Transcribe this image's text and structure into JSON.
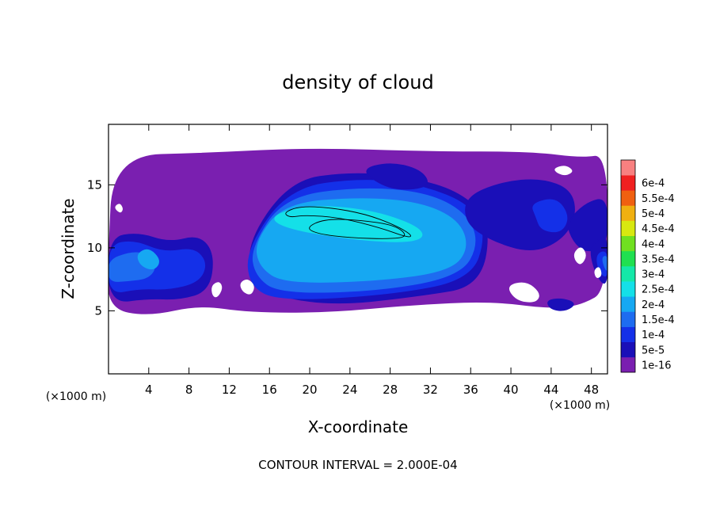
{
  "chart_data": {
    "type": "heatmap",
    "title": "density of cloud",
    "xlabel": "X-coordinate",
    "ylabel": "Z-coordinate",
    "x_unit": "(×1000 m)",
    "z_unit": "(×1000 m)",
    "xlim": [
      0,
      49.6
    ],
    "ylim": [
      0,
      19.8
    ],
    "x_ticks": [
      4,
      8,
      12,
      16,
      20,
      24,
      28,
      32,
      36,
      40,
      44,
      48
    ],
    "y_ticks": [
      5,
      10,
      15
    ],
    "footer": "CONTOUR INTERVAL = 2.000E-04",
    "colorbar": {
      "placement": "right",
      "levels": [
        "1e-16",
        "5e-5",
        "1e-4",
        "1.5e-4",
        "2e-4",
        "2.5e-4",
        "3e-4",
        "3.5e-4",
        "4e-4",
        "4.5e-4",
        "5e-4",
        "5.5e-4",
        "6e-4"
      ],
      "colors": [
        "#7a1fb0",
        "#1a0fb8",
        "#1430e8",
        "#1e6cf0",
        "#16a8f2",
        "#14e0e8",
        "#14e8a8",
        "#20e050",
        "#70e020",
        "#d8e810",
        "#f0b010",
        "#f06010",
        "#f02020",
        "#f88080"
      ]
    },
    "regions": [
      {
        "level": 0,
        "x": [
          0,
          0.5,
          10,
          20,
          32,
          42,
          47,
          49.6,
          49.6,
          47,
          44,
          38,
          30,
          22,
          14,
          9,
          4,
          0
        ],
        "z": [
          9,
          17.3,
          17.5,
          17.9,
          17.6,
          17.6,
          17.1,
          17.4,
          6.7,
          5.5,
          5.2,
          5.8,
          5.5,
          4.9,
          4.9,
          5.5,
          4.6,
          5.2
        ]
      },
      {
        "level": 1,
        "x": [
          13.5,
          18,
          24,
          30,
          35,
          38,
          37,
          31,
          22,
          15
        ],
        "z": [
          10,
          15.3,
          16,
          15.6,
          14.4,
          12,
          7,
          6.2,
          5.4,
          6.5
        ]
      },
      {
        "level": 2,
        "x": [
          13.8,
          18,
          25,
          31,
          36,
          37.5,
          36,
          28,
          17,
          14
        ],
        "z": [
          10,
          14.7,
          15.5,
          15,
          13.4,
          11,
          7.5,
          6.3,
          5.8,
          7
        ]
      },
      {
        "level": 3,
        "x": [
          14.2,
          17.5,
          25,
          31.5,
          35.5,
          36.8,
          35,
          27,
          17,
          14.6
        ],
        "z": [
          10,
          14,
          14.8,
          14.4,
          12.8,
          10.4,
          7.8,
          6.6,
          6.4,
          7.8
        ]
      },
      {
        "level": 4,
        "x": [
          14.6,
          17.5,
          25,
          31,
          34.8,
          35.8,
          34,
          27,
          17.5,
          15
        ],
        "z": [
          10.5,
          13.5,
          14,
          13.6,
          12.2,
          10,
          8.2,
          7.4,
          7.2,
          8.5
        ]
      },
      {
        "level": 5,
        "x": [
          16,
          20,
          26,
          30.5,
          31.5,
          29,
          23,
          17.5
        ],
        "z": [
          12.5,
          13.4,
          13,
          11.8,
          10.8,
          10.4,
          10.8,
          11.6
        ]
      },
      {
        "level": 1,
        "x": [
          0,
          3,
          6,
          9,
          10.5,
          10,
          7,
          4,
          0
        ],
        "z": [
          10.8,
          11.2,
          10.4,
          11,
          9.5,
          6.6,
          5.9,
          6,
          5.6
        ]
      },
      {
        "level": 2,
        "x": [
          0,
          2.5,
          5.5,
          8.5,
          9.8,
          9,
          6,
          3,
          0
        ],
        "z": [
          10.2,
          10.6,
          9.6,
          10,
          8.8,
          7.3,
          6.7,
          6.8,
          6.3
        ]
      },
      {
        "level": 3,
        "x": [
          0,
          2,
          3.5,
          4.8,
          4,
          2,
          0
        ],
        "z": [
          9,
          9.6,
          9.6,
          8.6,
          7.6,
          7.4,
          7.3
        ]
      },
      {
        "level": 4,
        "x": [
          2.8,
          4,
          5.2,
          4.5,
          3.2
        ],
        "z": [
          9.5,
          10,
          9,
          8.2,
          8.6
        ]
      },
      {
        "level": 1,
        "x": [
          35.5,
          39,
          43,
          46,
          46.5,
          45,
          42,
          38,
          35.5
        ],
        "z": [
          14,
          15.2,
          15.5,
          14.6,
          12.5,
          10.6,
          9.6,
          10.6,
          12
        ]
      },
      {
        "level": 2,
        "x": [
          42,
          44.5,
          45.8,
          45,
          43,
          42.5
        ],
        "z": [
          13.5,
          14,
          12.5,
          11.2,
          11.4,
          12.5
        ]
      },
      {
        "level": 1,
        "x": [
          45.5,
          47.5,
          49.6,
          49.6,
          47.5,
          46.2
        ],
        "z": [
          12,
          13.6,
          14,
          10.2,
          9.6,
          10.5
        ]
      },
      {
        "level": 1,
        "x": [
          47.8,
          48.6,
          49.6,
          49.6,
          48.5
        ],
        "z": [
          9.8,
          10.7,
          11,
          6.8,
          7.8
        ]
      },
      {
        "level": 2,
        "x": [
          48.5,
          49.6,
          49.6,
          48.7
        ],
        "z": [
          9.5,
          9.8,
          7.5,
          8.2
        ]
      },
      {
        "level": 3,
        "x": [
          49,
          49.6,
          49.6
        ],
        "z": [
          9.2,
          9.4,
          7.9
        ]
      },
      {
        "level": 1,
        "x": [
          25,
          28,
          31,
          32,
          30,
          27.5
        ],
        "z": [
          16.2,
          16.8,
          16.2,
          15,
          14.6,
          14.8
        ]
      },
      {
        "level": 1,
        "x": [
          43.5,
          45,
          46.5,
          45.5,
          44
        ],
        "z": [
          5.8,
          6,
          5.6,
          5,
          5.1
        ]
      }
    ],
    "holes": [
      {
        "x": [
          0.5,
          1.1,
          1.5,
          1.2
        ],
        "z": [
          13.2,
          13.6,
          13.1,
          12.7
        ]
      },
      {
        "x": [
          44.2,
          45.4,
          46.3,
          45.5,
          44.6
        ],
        "z": [
          16.3,
          16.6,
          16.1,
          15.7,
          15.9
        ]
      },
      {
        "x": [
          13,
          13.8,
          14.6,
          14.2,
          13.3
        ],
        "z": [
          7.2,
          7.6,
          7,
          6.2,
          6.5
        ]
      },
      {
        "x": [
          10.2,
          11,
          11.4,
          10.8,
          10.3
        ],
        "z": [
          7,
          7.4,
          6.8,
          6,
          6.2
        ]
      },
      {
        "x": [
          39.5,
          41.5,
          43,
          42.5,
          40.5
        ],
        "z": [
          7,
          7.4,
          6.4,
          5.6,
          5.8
        ]
      },
      {
        "x": [
          46.2,
          47,
          47.6,
          47,
          46.4
        ],
        "z": [
          9.6,
          10.2,
          9.4,
          8.6,
          8.9
        ]
      },
      {
        "x": [
          48.2,
          48.8,
          49.1,
          48.5
        ],
        "z": [
          8.2,
          8.6,
          7.8,
          7.5
        ]
      }
    ],
    "contours": [
      {
        "level": "2e-4",
        "x": [
          17.4,
          19,
          22,
          25.5,
          28.5,
          30.2,
          29.8,
          27,
          23,
          19.5,
          18
        ],
        "z": [
          12.8,
          13.3,
          13.2,
          12.7,
          11.8,
          11,
          10.8,
          11.6,
          12.4,
          12.6,
          12.4
        ]
      },
      {
        "level": "2e-4",
        "x": [
          19.6,
          21.5,
          25,
          28.5,
          29.8,
          28,
          24,
          20.8
        ],
        "z": [
          11.6,
          12.3,
          12.2,
          11.8,
          10.9,
          10.7,
          10.8,
          11.1
        ]
      }
    ]
  }
}
